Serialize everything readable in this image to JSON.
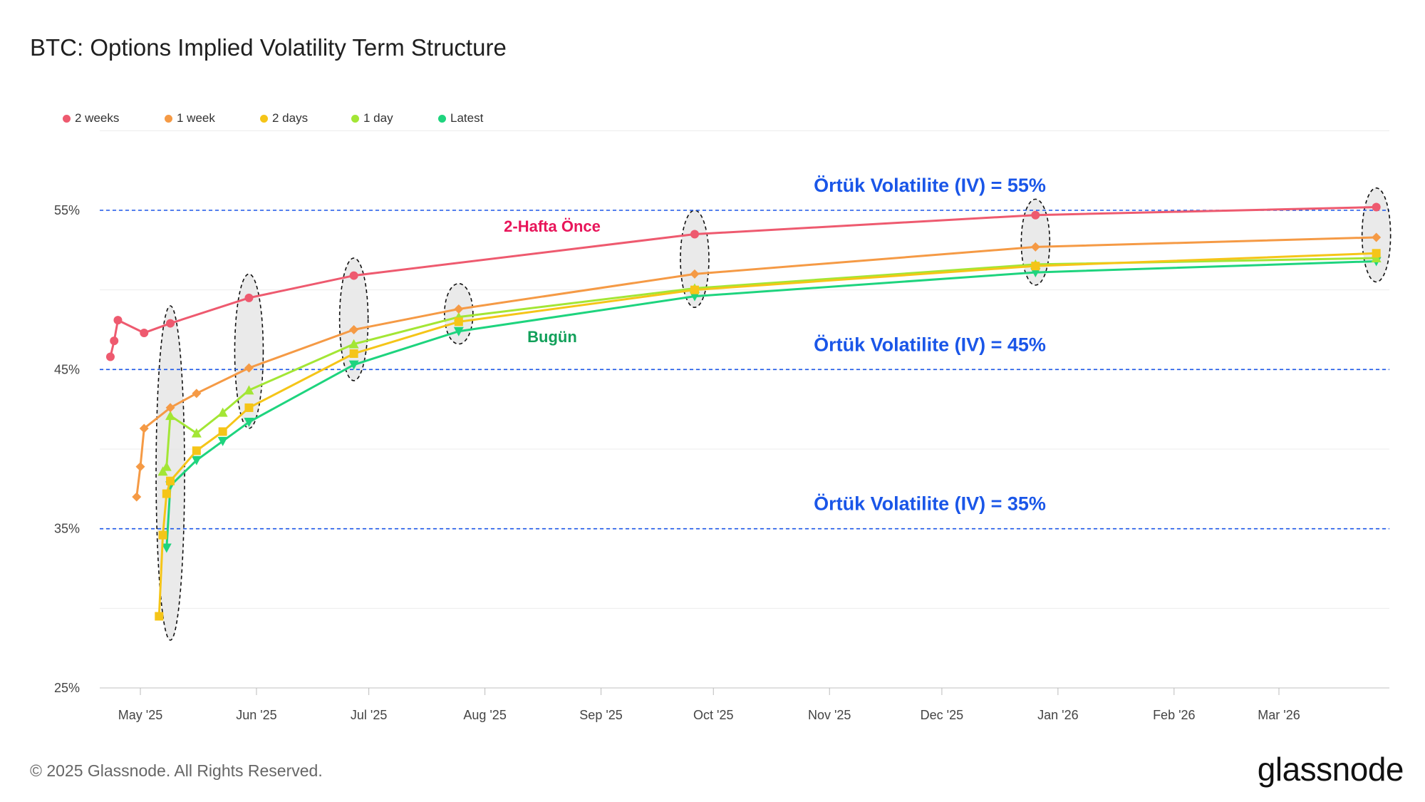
{
  "header": {
    "title": "BTC: Options Implied Volatility Term Structure"
  },
  "footer": {
    "copyright": "© 2025 Glassnode. All Rights Reserved.",
    "logo": "glassnode"
  },
  "chart_data": {
    "type": "line",
    "title": "BTC: Options Implied Volatility Term Structure",
    "xlabel": "",
    "ylabel": "",
    "x_range": [
      "2025-04-20",
      "2026-04-01"
    ],
    "ylim": [
      25,
      60
    ],
    "y_ticks": [
      {
        "value": 25,
        "label": "25%"
      },
      {
        "value": 35,
        "label": "35%"
      },
      {
        "value": 45,
        "label": "45%"
      },
      {
        "value": 55,
        "label": "55%"
      }
    ],
    "x_ticks": [
      {
        "date": "2025-05-01",
        "label": "May '25"
      },
      {
        "date": "2025-06-01",
        "label": "Jun '25"
      },
      {
        "date": "2025-07-01",
        "label": "Jul '25"
      },
      {
        "date": "2025-08-01",
        "label": "Aug '25"
      },
      {
        "date": "2025-09-01",
        "label": "Sep '25"
      },
      {
        "date": "2025-10-01",
        "label": "Oct '25"
      },
      {
        "date": "2025-11-01",
        "label": "Nov '25"
      },
      {
        "date": "2025-12-01",
        "label": "Dec '25"
      },
      {
        "date": "2026-01-01",
        "label": "Jan '26"
      },
      {
        "date": "2026-02-01",
        "label": "Feb '26"
      },
      {
        "date": "2026-03-01",
        "label": "Mar '26"
      }
    ],
    "grid": true,
    "legend_position": "top-left",
    "series": [
      {
        "name": "2 weeks",
        "color": "#ee5a6f",
        "marker": "circle",
        "points": [
          [
            "2025-04-23",
            45.8
          ],
          [
            "2025-04-24",
            46.8
          ],
          [
            "2025-04-25",
            48.1
          ],
          [
            "2025-05-02",
            47.3
          ],
          [
            "2025-05-09",
            47.9
          ],
          [
            "2025-05-30",
            49.5
          ],
          [
            "2025-06-27",
            50.9
          ],
          [
            "2025-09-26",
            53.5
          ],
          [
            "2025-12-26",
            54.7
          ],
          [
            "2026-03-27",
            55.2
          ]
        ]
      },
      {
        "name": "1 week",
        "color": "#f59a45",
        "marker": "diamond",
        "points": [
          [
            "2025-04-30",
            37.0
          ],
          [
            "2025-05-01",
            38.9
          ],
          [
            "2025-05-02",
            41.3
          ],
          [
            "2025-05-09",
            42.6
          ],
          [
            "2025-05-16",
            43.5
          ],
          [
            "2025-05-30",
            45.1
          ],
          [
            "2025-06-27",
            47.5
          ],
          [
            "2025-07-25",
            48.8
          ],
          [
            "2025-09-26",
            51.0
          ],
          [
            "2025-12-26",
            52.7
          ],
          [
            "2026-03-27",
            53.3
          ]
        ]
      },
      {
        "name": "2 days",
        "color": "#f5c518",
        "marker": "square",
        "points": [
          [
            "2025-05-06",
            29.5
          ],
          [
            "2025-05-07",
            34.6
          ],
          [
            "2025-05-08",
            37.2
          ],
          [
            "2025-05-09",
            38.0
          ],
          [
            "2025-05-16",
            39.9
          ],
          [
            "2025-05-23",
            41.1
          ],
          [
            "2025-05-30",
            42.6
          ],
          [
            "2025-06-27",
            46.0
          ],
          [
            "2025-07-25",
            48.0
          ],
          [
            "2025-09-26",
            50.0
          ],
          [
            "2025-12-26",
            51.5
          ],
          [
            "2026-03-27",
            52.3
          ]
        ]
      },
      {
        "name": "1 day",
        "color": "#a3e635",
        "marker": "triangle-up",
        "points": [
          [
            "2025-05-07",
            38.6
          ],
          [
            "2025-05-08",
            38.9
          ],
          [
            "2025-05-09",
            42.1
          ],
          [
            "2025-05-16",
            41.0
          ],
          [
            "2025-05-23",
            42.3
          ],
          [
            "2025-05-30",
            43.7
          ],
          [
            "2025-06-27",
            46.6
          ],
          [
            "2025-07-25",
            48.3
          ],
          [
            "2025-09-26",
            50.1
          ],
          [
            "2025-12-26",
            51.6
          ],
          [
            "2026-03-27",
            52.0
          ]
        ]
      },
      {
        "name": "Latest",
        "color": "#1ed47e",
        "marker": "triangle-down",
        "points": [
          [
            "2025-05-08",
            33.8
          ],
          [
            "2025-05-09",
            37.7
          ],
          [
            "2025-05-16",
            39.3
          ],
          [
            "2025-05-23",
            40.5
          ],
          [
            "2025-05-30",
            41.7
          ],
          [
            "2025-06-27",
            45.3
          ],
          [
            "2025-07-25",
            47.4
          ],
          [
            "2025-09-26",
            49.6
          ],
          [
            "2025-12-26",
            51.1
          ],
          [
            "2026-03-27",
            51.8
          ]
        ]
      }
    ],
    "reference_lines": [
      {
        "value": 55,
        "label": "Örtük Volatilite (IV) = 55%"
      },
      {
        "value": 45,
        "label": "Örtük Volatilite (IV) = 45%"
      },
      {
        "value": 35,
        "label": "Örtük Volatilite (IV) = 35%"
      }
    ],
    "annotations": [
      {
        "text": "2-Hafta Önce",
        "color": "#e8155a"
      },
      {
        "text": "Bugün",
        "color": "#12a05a"
      }
    ],
    "highlight_expiries": [
      {
        "date": "2025-05-09",
        "from": 28.0,
        "to": 49.0
      },
      {
        "date": "2025-05-30",
        "from": 41.3,
        "to": 51.0
      },
      {
        "date": "2025-06-27",
        "from": 44.3,
        "to": 52.0
      },
      {
        "date": "2025-07-25",
        "from": 46.6,
        "to": 50.4
      },
      {
        "date": "2025-09-26",
        "from": 48.9,
        "to": 55.0
      },
      {
        "date": "2025-12-26",
        "from": 50.3,
        "to": 55.7
      },
      {
        "date": "2026-03-27",
        "from": 50.5,
        "to": 56.4
      }
    ]
  }
}
